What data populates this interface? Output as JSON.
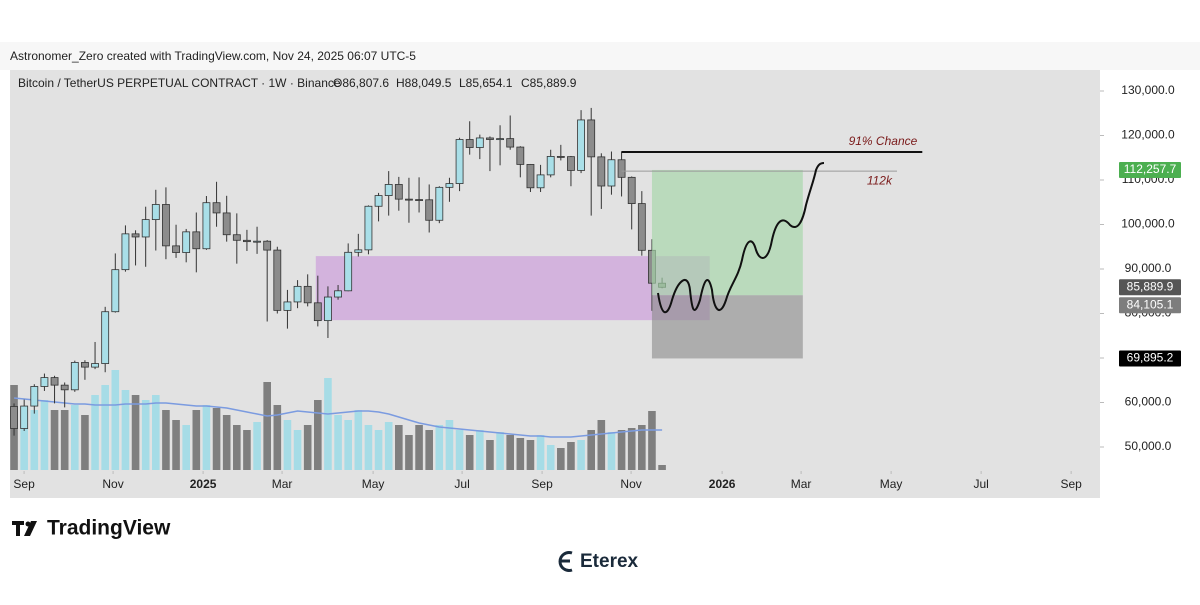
{
  "header": {
    "attribution": "Astronomer_Zero created with TradingView.com, Nov 24, 2025 06:07 UTC-5"
  },
  "footer": {
    "logo": "TradingView",
    "watermark": "Eterex"
  },
  "chart_data": {
    "type": "candlestick",
    "title": "Bitcoin / TetherUS PERPETUAL CONTRACT · 1W · Binance",
    "legend_ohlc": [
      "O86,807.6",
      "H88,049.5",
      "L85,654.1",
      "C85,889.9"
    ],
    "open": [
      59100,
      54150,
      59200,
      63600,
      65600,
      63900,
      62850,
      69000,
      67950,
      68750,
      80400,
      89850,
      97900,
      97200,
      101100,
      104500,
      95200,
      93700,
      98350,
      94550,
      104900,
      102600,
      97700,
      96450,
      96150,
      96250,
      94250,
      80700,
      82600,
      86100,
      82400,
      78400,
      83700,
      85100,
      93750,
      94300,
      104100,
      106500,
      109000,
      105700,
      105600,
      105550,
      100950,
      108350,
      109200,
      119100,
      117300,
      119450,
      119100,
      119300,
      117400,
      113500,
      108250,
      111150,
      115300,
      115250,
      112150,
      123500,
      115200,
      108650,
      114550,
      110600,
      104700,
      94200,
      86807.6
    ],
    "high": [
      59800,
      60650,
      64100,
      66500,
      66000,
      64500,
      69400,
      69500,
      73600,
      81500,
      93500,
      99800,
      98700,
      104000,
      107800,
      108350,
      99950,
      99000,
      102700,
      106400,
      109600,
      106450,
      102500,
      98800,
      99500,
      96500,
      95000,
      85300,
      87500,
      88800,
      88500,
      86100,
      86400,
      95750,
      97900,
      104300,
      107100,
      112000,
      110700,
      110500,
      110600,
      109000,
      108600,
      110500,
      119500,
      123200,
      120200,
      119800,
      122300,
      124500,
      117600,
      113600,
      113400,
      116800,
      117900,
      115400,
      125700,
      126200,
      116000,
      116400,
      116400,
      110800,
      107500,
      96700,
      88049.5
    ],
    "low": [
      52550,
      53600,
      57500,
      62600,
      59800,
      58900,
      62400,
      65100,
      67500,
      66800,
      80200,
      89400,
      90800,
      90500,
      94150,
      92200,
      92500,
      91500,
      89250,
      94300,
      99500,
      96150,
      91200,
      94050,
      93400,
      78200,
      80000,
      76600,
      81200,
      81600,
      77100,
      74500,
      83100,
      85000,
      92800,
      93300,
      100700,
      102000,
      103100,
      100400,
      102700,
      98200,
      100300,
      105100,
      107500,
      115700,
      114700,
      112000,
      113300,
      116800,
      110600,
      107300,
      107300,
      110600,
      114400,
      108600,
      111550,
      102000,
      103500,
      106700,
      106300,
      98900,
      93000,
      80600,
      85654.1
    ],
    "close": [
      54150,
      59200,
      63600,
      65600,
      63900,
      62850,
      69000,
      67950,
      68750,
      80400,
      89850,
      97900,
      97200,
      101100,
      104500,
      95200,
      93700,
      98350,
      94550,
      104900,
      102600,
      97700,
      96450,
      96150,
      96250,
      94250,
      80700,
      82600,
      86100,
      82400,
      78400,
      83700,
      85100,
      93750,
      94300,
      104100,
      106500,
      109000,
      105700,
      105600,
      105550,
      100950,
      108350,
      109200,
      119100,
      117300,
      119450,
      119100,
      119300,
      117400,
      113500,
      108250,
      111150,
      115300,
      115250,
      112150,
      123500,
      115200,
      108650,
      114550,
      110600,
      104700,
      94200,
      86807.6,
      85889.9
    ],
    "volume": [
      85,
      55,
      60,
      70,
      60,
      60,
      65,
      55,
      75,
      85,
      100,
      80,
      75,
      70,
      75,
      60,
      50,
      45,
      60,
      65,
      62,
      55,
      45,
      40,
      48,
      88,
      65,
      50,
      40,
      45,
      70,
      92,
      55,
      50,
      60,
      45,
      40,
      48,
      45,
      35,
      45,
      40,
      45,
      50,
      40,
      35,
      40,
      30,
      38,
      35,
      32,
      30,
      35,
      25,
      22,
      28,
      30,
      40,
      50,
      38,
      40,
      42,
      45,
      59,
      5
    ],
    "volume_ma": [
      72,
      71,
      70,
      69,
      68,
      67,
      66,
      66,
      65,
      65,
      65,
      66,
      66,
      66,
      67,
      67,
      66,
      65,
      64,
      64,
      63,
      62,
      60,
      58,
      56,
      54,
      55,
      57,
      59,
      58,
      57,
      56,
      57,
      58,
      59,
      59,
      58,
      56,
      53,
      50,
      47,
      45,
      43,
      42,
      41,
      40,
      39,
      38,
      37,
      36,
      35,
      34,
      34,
      33,
      33,
      33,
      34,
      35,
      36,
      37,
      38,
      39,
      40,
      40,
      40
    ],
    "volume_lim": [
      0,
      105
    ],
    "colors": {
      "up": "#a9dfe8",
      "down": "#8c8c8c",
      "wick": "#333333",
      "volume_up": "#a6dce6",
      "volume_down": "#7f7f7f",
      "volume_ma": "#7b9be0"
    },
    "ylim": [
      44830,
      134720
    ],
    "yticks": [
      {
        "value": 50000,
        "label": "50,000.0"
      },
      {
        "value": 60000,
        "label": "60,000.0"
      },
      {
        "value": 70000,
        "label": "70,000.0"
      },
      {
        "value": 80000,
        "label": "80,000.0"
      },
      {
        "value": 90000,
        "label": "90,000.0"
      },
      {
        "value": 100000,
        "label": "100,000.0"
      },
      {
        "value": 110000,
        "label": "110,000.0"
      },
      {
        "value": 120000,
        "label": "120,000.0"
      },
      {
        "value": 130000,
        "label": "130,000.0"
      }
    ],
    "xlim": [
      -0.4,
      107.25
    ],
    "xticks": [
      {
        "value": 0.99,
        "label": "Sep"
      },
      {
        "value": 9.78,
        "label": "Nov"
      },
      {
        "value": 18.67,
        "label": "2025"
      },
      {
        "value": 26.47,
        "label": "Mar"
      },
      {
        "value": 35.46,
        "label": "May"
      },
      {
        "value": 44.25,
        "label": "Jul"
      },
      {
        "value": 52.15,
        "label": "Sep"
      },
      {
        "value": 60.94,
        "label": "Nov"
      },
      {
        "value": 69.93,
        "label": "2026"
      },
      {
        "value": 77.73,
        "label": "Mar"
      },
      {
        "value": 86.62,
        "label": "May"
      },
      {
        "value": 95.51,
        "label": "Jul"
      },
      {
        "value": 104.4,
        "label": "Sep"
      }
    ],
    "zone": {
      "top": 92900,
      "bottom": 78500,
      "start": 29.8,
      "end": 68.7,
      "color": "#cfa8dc"
    },
    "position": {
      "target": 112257.7,
      "entry": 84105.1,
      "stop": 69895.2,
      "start": 63,
      "end": 77.9,
      "target_color": "#a5d6a7",
      "stop_color": "#8a8a8a"
    },
    "annotations": [
      {
        "text": "91% Chance",
        "value": 116300,
        "start": 60,
        "end": 89.7,
        "color": "#111111"
      },
      {
        "text": "112k",
        "value": 112000,
        "start": 60,
        "end": 87.2,
        "color": "#9a9a9a"
      }
    ],
    "price_tags": [
      {
        "value": 112257.7,
        "label": "112,257.7",
        "color": "#4caf50"
      },
      {
        "value": 85889.9,
        "label": "85,889.9",
        "color": "#555555"
      },
      {
        "value": 84105.1,
        "label": "84,105.1",
        "color": "#7d7d7d"
      },
      {
        "value": 69895.2,
        "label": "69,895.2",
        "color": "#000000"
      }
    ]
  }
}
